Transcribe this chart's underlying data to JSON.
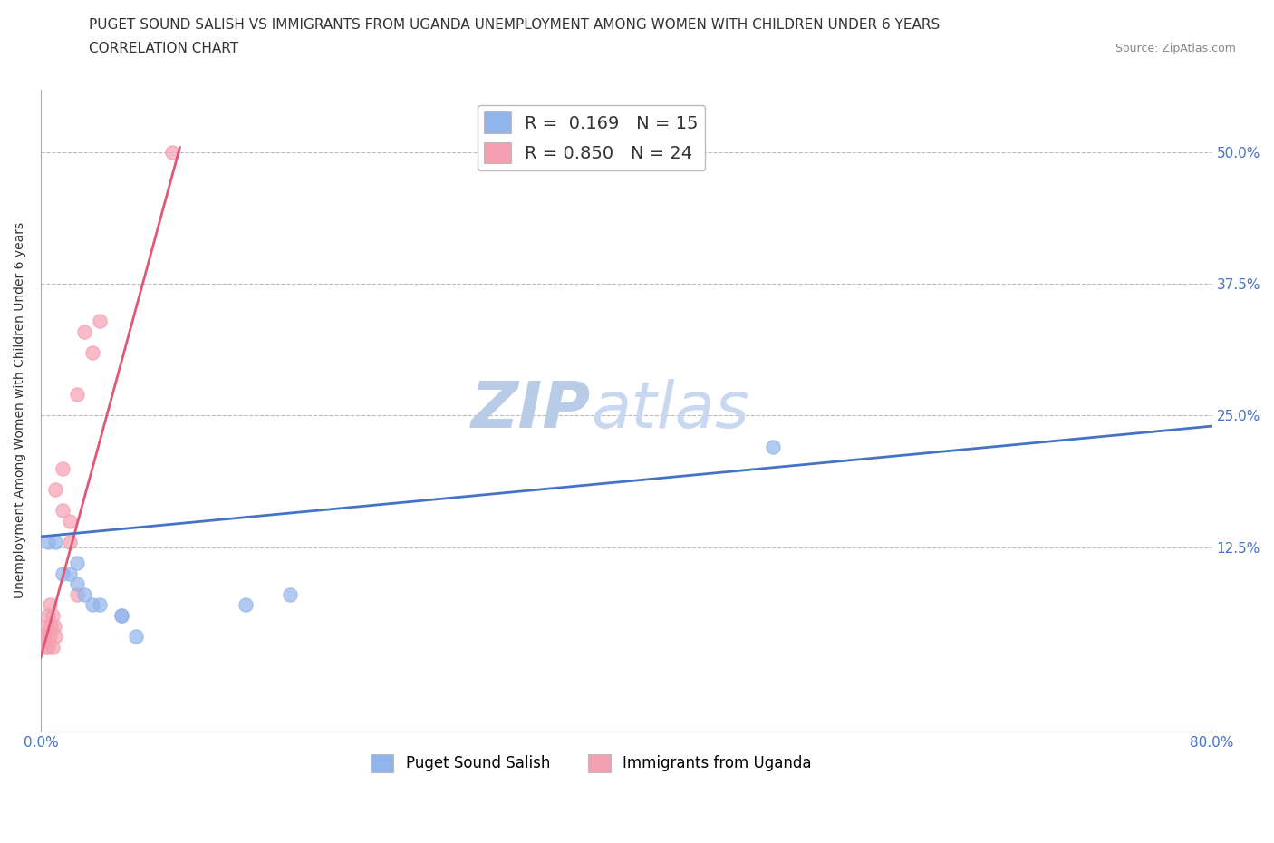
{
  "title_line1": "PUGET SOUND SALISH VS IMMIGRANTS FROM UGANDA UNEMPLOYMENT AMONG WOMEN WITH CHILDREN UNDER 6 YEARS",
  "title_line2": "CORRELATION CHART",
  "source_text": "Source: ZipAtlas.com",
  "ylabel": "Unemployment Among Women with Children Under 6 years",
  "watermark_zip": "ZIP",
  "watermark_atlas": "atlas",
  "xlim": [
    0.0,
    0.8
  ],
  "ylim": [
    -0.05,
    0.56
  ],
  "xticks": [
    0.0,
    0.2,
    0.4,
    0.6,
    0.8
  ],
  "xtick_labels": [
    "0.0%",
    "",
    "",
    "",
    "80.0%"
  ],
  "yticks": [
    0.0,
    0.125,
    0.25,
    0.375,
    0.5
  ],
  "ytick_labels_right": [
    "",
    "12.5%",
    "25.0%",
    "37.5%",
    "50.0%"
  ],
  "blue_scatter_x": [
    0.005,
    0.01,
    0.015,
    0.02,
    0.025,
    0.025,
    0.03,
    0.035,
    0.04,
    0.055,
    0.055,
    0.065,
    0.5,
    0.14,
    0.17
  ],
  "blue_scatter_y": [
    0.13,
    0.13,
    0.1,
    0.1,
    0.09,
    0.11,
    0.08,
    0.07,
    0.07,
    0.06,
    0.06,
    0.04,
    0.22,
    0.07,
    0.08
  ],
  "pink_scatter_x": [
    0.002,
    0.003,
    0.004,
    0.004,
    0.005,
    0.005,
    0.006,
    0.006,
    0.007,
    0.008,
    0.008,
    0.009,
    0.01,
    0.01,
    0.015,
    0.015,
    0.02,
    0.02,
    0.025,
    0.025,
    0.03,
    0.035,
    0.04,
    0.09
  ],
  "pink_scatter_y": [
    0.04,
    0.04,
    0.03,
    0.05,
    0.03,
    0.06,
    0.04,
    0.07,
    0.05,
    0.03,
    0.06,
    0.05,
    0.04,
    0.18,
    0.16,
    0.2,
    0.13,
    0.15,
    0.27,
    0.08,
    0.33,
    0.31,
    0.34,
    0.5
  ],
  "blue_R": 0.169,
  "blue_N": 15,
  "pink_R": 0.85,
  "pink_N": 24,
  "blue_line_x": [
    0.0,
    0.8
  ],
  "blue_line_y": [
    0.135,
    0.24
  ],
  "pink_line_x": [
    0.0,
    0.095
  ],
  "pink_line_y": [
    0.02,
    0.505
  ],
  "blue_color": "#92B4EC",
  "pink_color": "#F4A0B0",
  "blue_line_color": "#4472C4",
  "pink_line_color": "#E05878",
  "scatter_size": 120,
  "background_color": "#FFFFFF",
  "grid_color": "#BBBBBB",
  "title_fontsize": 11,
  "axis_label_fontsize": 10,
  "tick_label_fontsize": 11,
  "legend_fontsize": 14,
  "watermark_fontsize": 52,
  "watermark_color": "#C8D8F0"
}
